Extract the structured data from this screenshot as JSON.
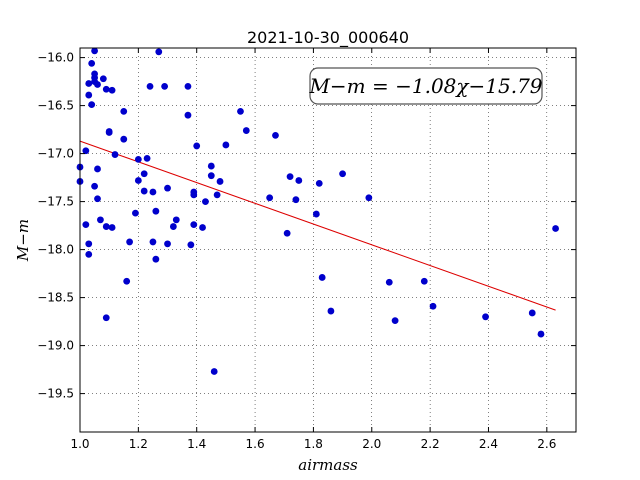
{
  "chart_data": {
    "type": "scatter",
    "title": "2021-10-30_000640",
    "xlabel": "airmass",
    "ylabel": "M−m",
    "xlim": [
      1.0,
      2.7
    ],
    "ylim": [
      -15.9,
      -19.9
    ],
    "y_inverted": true,
    "grid": true,
    "x_ticks": [
      1.0,
      1.2,
      1.4,
      1.6,
      1.8,
      2.0,
      2.2,
      2.4,
      2.6
    ],
    "x_tick_labels": [
      "1.0",
      "1.2",
      "1.4",
      "1.6",
      "1.8",
      "2.0",
      "2.2",
      "2.4",
      "2.6"
    ],
    "y_ticks": [
      -16.0,
      -16.5,
      -17.0,
      -17.5,
      -18.0,
      -18.5,
      -19.0,
      -19.5
    ],
    "y_tick_labels": [
      "−16.0",
      "−16.5",
      "−17.0",
      "−17.5",
      "−18.0",
      "−18.5",
      "−19.0",
      "−19.5"
    ],
    "annotation": "M−m = −1.08χ−15.79",
    "annotation_position": "top-right",
    "colors": {
      "points": "#0000cc",
      "fit_line": "#dd0000"
    },
    "fit_line": {
      "slope": -1.08,
      "intercept": -15.79,
      "x": [
        1.0,
        2.63
      ]
    },
    "series": [
      {
        "points": [
          [
            1.0,
            -17.14
          ],
          [
            1.0,
            -17.29
          ],
          [
            1.02,
            -16.97
          ],
          [
            1.02,
            -17.74
          ],
          [
            1.03,
            -17.94
          ],
          [
            1.03,
            -18.05
          ],
          [
            1.03,
            -16.27
          ],
          [
            1.03,
            -16.39
          ],
          [
            1.04,
            -16.49
          ],
          [
            1.04,
            -16.06
          ],
          [
            1.05,
            -16.25
          ],
          [
            1.05,
            -16.17
          ],
          [
            1.05,
            -16.21
          ],
          [
            1.05,
            -15.93
          ],
          [
            1.05,
            -17.34
          ],
          [
            1.06,
            -17.16
          ],
          [
            1.06,
            -17.47
          ],
          [
            1.06,
            -16.28
          ],
          [
            1.07,
            -17.69
          ],
          [
            1.08,
            -16.22
          ],
          [
            1.09,
            -16.33
          ],
          [
            1.09,
            -17.76
          ],
          [
            1.09,
            -18.71
          ],
          [
            1.1,
            -16.78
          ],
          [
            1.1,
            -16.77
          ],
          [
            1.11,
            -17.77
          ],
          [
            1.11,
            -16.34
          ],
          [
            1.12,
            -17.01
          ],
          [
            1.15,
            -16.56
          ],
          [
            1.15,
            -16.85
          ],
          [
            1.16,
            -18.33
          ],
          [
            1.17,
            -17.92
          ],
          [
            1.19,
            -17.62
          ],
          [
            1.2,
            -17.28
          ],
          [
            1.2,
            -17.06
          ],
          [
            1.22,
            -17.21
          ],
          [
            1.22,
            -17.39
          ],
          [
            1.23,
            -17.05
          ],
          [
            1.24,
            -16.3
          ],
          [
            1.25,
            -17.4
          ],
          [
            1.25,
            -17.92
          ],
          [
            1.26,
            -18.1
          ],
          [
            1.26,
            -17.6
          ],
          [
            1.27,
            -15.94
          ],
          [
            1.29,
            -16.3
          ],
          [
            1.3,
            -17.36
          ],
          [
            1.3,
            -17.94
          ],
          [
            1.32,
            -17.76
          ],
          [
            1.33,
            -17.69
          ],
          [
            1.37,
            -16.3
          ],
          [
            1.37,
            -16.6
          ],
          [
            1.38,
            -17.95
          ],
          [
            1.39,
            -17.4
          ],
          [
            1.39,
            -17.43
          ],
          [
            1.39,
            -17.74
          ],
          [
            1.4,
            -16.92
          ],
          [
            1.42,
            -17.77
          ],
          [
            1.43,
            -17.5
          ],
          [
            1.45,
            -17.13
          ],
          [
            1.45,
            -17.23
          ],
          [
            1.46,
            -19.27
          ],
          [
            1.47,
            -17.43
          ],
          [
            1.48,
            -17.29
          ],
          [
            1.5,
            -16.91
          ],
          [
            1.55,
            -16.56
          ],
          [
            1.57,
            -16.76
          ],
          [
            1.65,
            -17.46
          ],
          [
            1.67,
            -16.81
          ],
          [
            1.71,
            -17.83
          ],
          [
            1.72,
            -17.24
          ],
          [
            1.74,
            -17.48
          ],
          [
            1.75,
            -17.28
          ],
          [
            1.81,
            -17.63
          ],
          [
            1.82,
            -17.31
          ],
          [
            1.83,
            -18.29
          ],
          [
            1.86,
            -18.64
          ],
          [
            1.9,
            -17.21
          ],
          [
            1.99,
            -17.46
          ],
          [
            2.06,
            -18.34
          ],
          [
            2.08,
            -18.74
          ],
          [
            2.18,
            -18.33
          ],
          [
            2.21,
            -18.59
          ],
          [
            2.39,
            -18.7
          ],
          [
            2.55,
            -18.66
          ],
          [
            2.58,
            -18.88
          ],
          [
            2.63,
            -17.78
          ]
        ]
      }
    ]
  }
}
